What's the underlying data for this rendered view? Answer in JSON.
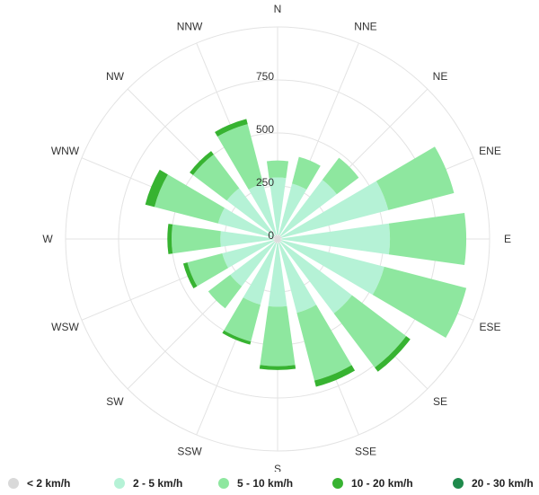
{
  "chart_data": {
    "type": "wind-rose",
    "directions": [
      "N",
      "NNE",
      "NE",
      "ENE",
      "E",
      "ESE",
      "SE",
      "SSE",
      "S",
      "SSW",
      "SW",
      "WSW",
      "W",
      "WNW",
      "NW",
      "NNW"
    ],
    "radial_ticks": [
      "0",
      "250",
      "500",
      "750"
    ],
    "radial_max": 1000,
    "grid": true,
    "legend_position": "bottom",
    "series": [
      {
        "name": "< 2 km/h",
        "color": "#d9d9d9",
        "values": [
          20,
          20,
          20,
          20,
          20,
          20,
          20,
          20,
          20,
          20,
          20,
          20,
          20,
          20,
          20,
          20
        ]
      },
      {
        "name": "2 - 5 km/h",
        "color": "#b5f2d6",
        "values": [
          270,
          250,
          330,
          520,
          510,
          500,
          420,
          340,
          300,
          300,
          260,
          250,
          250,
          270,
          280,
          250
        ]
      },
      {
        "name": "5 - 10 km/h",
        "color": "#8ee79f",
        "values": [
          80,
          130,
          130,
          320,
          360,
          400,
          320,
          330,
          280,
          180,
          130,
          170,
          230,
          310,
          200,
          290
        ]
      },
      {
        "name": "10 - 20 km/h",
        "color": "#37b331",
        "values": [
          0,
          0,
          0,
          0,
          0,
          0,
          25,
          30,
          18,
          15,
          0,
          20,
          20,
          45,
          20,
          25
        ]
      },
      {
        "name": "20 - 30 km/h",
        "color": "#1f8a4c",
        "values": [
          0,
          0,
          0,
          0,
          0,
          0,
          0,
          0,
          0,
          0,
          0,
          0,
          0,
          0,
          0,
          0
        ]
      }
    ]
  }
}
